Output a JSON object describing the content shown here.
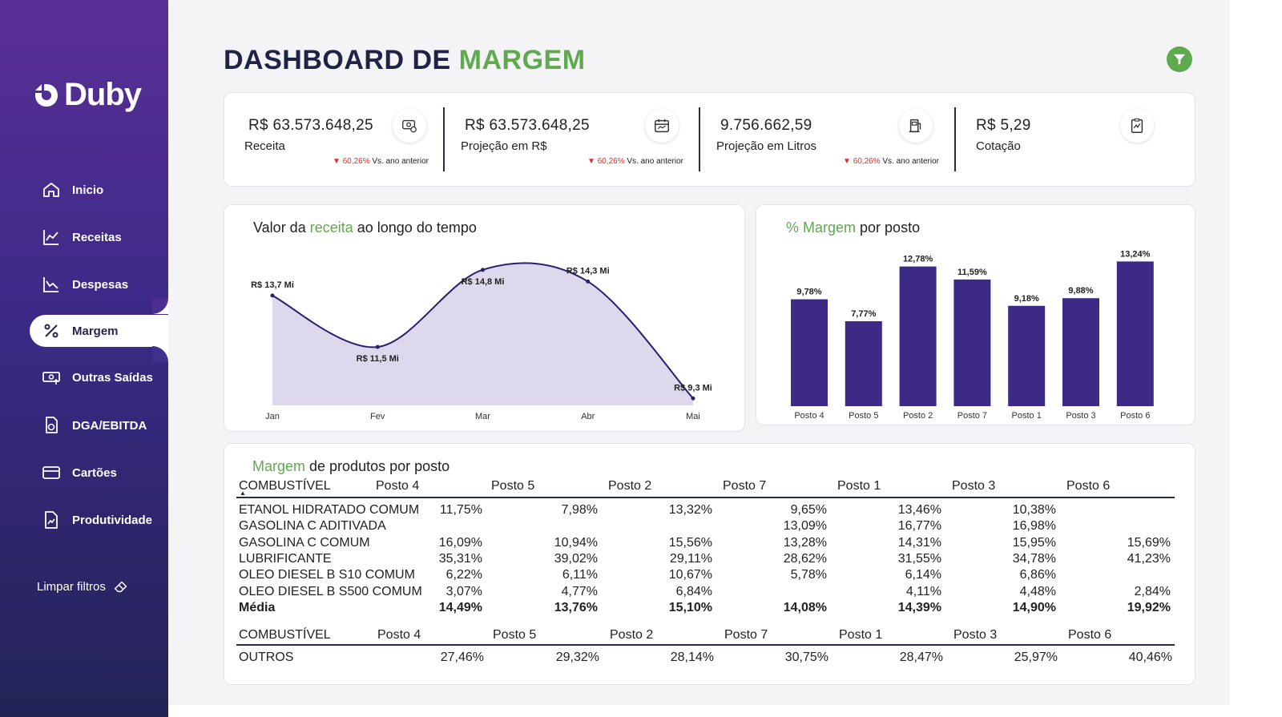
{
  "brand": "Duby",
  "title": {
    "prefix": "DASHBOARD DE",
    "accent": "MARGEM"
  },
  "nav": [
    {
      "label": "Inicio",
      "icon": "home-icon"
    },
    {
      "label": "Receitas",
      "icon": "line-chart-icon"
    },
    {
      "label": "Despesas",
      "icon": "line-chart-down-icon"
    },
    {
      "label": "Margem",
      "icon": "percent-icon",
      "active": true
    },
    {
      "label": "Outras Saídas",
      "icon": "money-out-icon"
    },
    {
      "label": "DGA/EBITDA",
      "icon": "document-refresh-icon"
    },
    {
      "label": "Cartões",
      "icon": "card-icon"
    },
    {
      "label": "Produtividade",
      "icon": "file-chart-icon"
    }
  ],
  "clear_filters": "Limpar filtros",
  "kpis": [
    {
      "value": "R$ 63.573.648,25",
      "label": "Receita",
      "delta_pct": "60,26%",
      "delta_text": "Vs. ano anterior",
      "icon": "money-icon"
    },
    {
      "value": "R$ 63.573.648,25",
      "label": "Projeção em R$",
      "delta_pct": "60,26%",
      "delta_text": "Vs. ano anterior",
      "icon": "calendar-icon"
    },
    {
      "value": "9.756.662,59",
      "label": "Projeção em Litros",
      "delta_pct": "60,26%",
      "delta_text": "Vs. ano anterior",
      "icon": "fuel-pump-icon"
    },
    {
      "value": "R$ 5,29",
      "label": "Cotação",
      "icon": "clipboard-chart-icon"
    }
  ],
  "line_card": {
    "title_a": "Valor da ",
    "title_g": "receita",
    "title_b": " ao longo do tempo"
  },
  "bar_card": {
    "title_g": "% Margem",
    "title_b": " por posto"
  },
  "table_card": {
    "title_g": "Margem",
    "title_b": " de produtos por posto"
  },
  "chart_data": [
    {
      "type": "area",
      "categories": [
        "Jan",
        "Fev",
        "Mar",
        "Abr",
        "Mai"
      ],
      "values": [
        13.7,
        11.5,
        14.8,
        14.3,
        9.3
      ],
      "data_labels": [
        "R$ 13,7 Mi",
        "R$ 11,5 Mi",
        "R$ 14,8 Mi",
        "R$ 14,3 Mi",
        "R$ 9,3 Mi"
      ],
      "ylim": [
        9.0,
        15.0
      ],
      "grid": false,
      "colors": {
        "line": "#2a1f6e",
        "fill": "#ddd8ec"
      }
    },
    {
      "type": "bar",
      "categories": [
        "Posto 4",
        "Posto 5",
        "Posto 2",
        "Posto 7",
        "Posto 1",
        "Posto 3",
        "Posto 6"
      ],
      "values": [
        9.78,
        7.77,
        12.78,
        11.59,
        9.18,
        9.88,
        13.24
      ],
      "data_labels": [
        "9,78%",
        "7,77%",
        "12,78%",
        "11,59%",
        "9,18%",
        "9,88%",
        "13,24%"
      ],
      "ylim": [
        0,
        14
      ],
      "grid": false,
      "colors": {
        "bar": "#3c2a86"
      }
    },
    {
      "type": "table",
      "columns": [
        "COMBUSTÍVEL",
        "Posto 4",
        "Posto 5",
        "Posto 2",
        "Posto 7",
        "Posto 1",
        "Posto 3",
        "Posto 6"
      ],
      "rows": [
        [
          "ETANOL HIDRATADO COMUM",
          "11,75%",
          "7,98%",
          "13,32%",
          "9,65%",
          "13,46%",
          "10,38%",
          ""
        ],
        [
          "GASOLINA C ADITIVADA",
          "",
          "",
          "",
          "13,09%",
          "16,77%",
          "16,98%",
          ""
        ],
        [
          "GASOLINA C COMUM",
          "16,09%",
          "10,94%",
          "15,56%",
          "13,28%",
          "14,31%",
          "15,95%",
          "15,69%"
        ],
        [
          "LUBRIFICANTE",
          "35,31%",
          "39,02%",
          "29,11%",
          "28,62%",
          "31,55%",
          "34,78%",
          "41,23%"
        ],
        [
          "OLEO DIESEL B S10 COMUM",
          "6,22%",
          "6,11%",
          "10,67%",
          "5,78%",
          "6,14%",
          "6,86%",
          ""
        ],
        [
          "OLEO DIESEL B S500 COMUM",
          "3,07%",
          "4,77%",
          "6,84%",
          "",
          "4,11%",
          "4,48%",
          "2,84%"
        ]
      ],
      "total": [
        "Média",
        "14,49%",
        "13,76%",
        "15,10%",
        "14,08%",
        "14,39%",
        "14,90%",
        "19,92%"
      ]
    },
    {
      "type": "table",
      "columns": [
        "COMBUSTÍVEL",
        "Posto 4",
        "Posto 5",
        "Posto 2",
        "Posto 7",
        "Posto 1",
        "Posto 3",
        "Posto 6"
      ],
      "rows": [
        [
          "OUTROS",
          "27,46%",
          "29,32%",
          "28,14%",
          "30,75%",
          "28,47%",
          "25,97%",
          "40,46%"
        ]
      ]
    }
  ],
  "colors": {
    "accent": "#5fa94e",
    "primary": "#3c2a86",
    "negative": "#d9302c"
  }
}
